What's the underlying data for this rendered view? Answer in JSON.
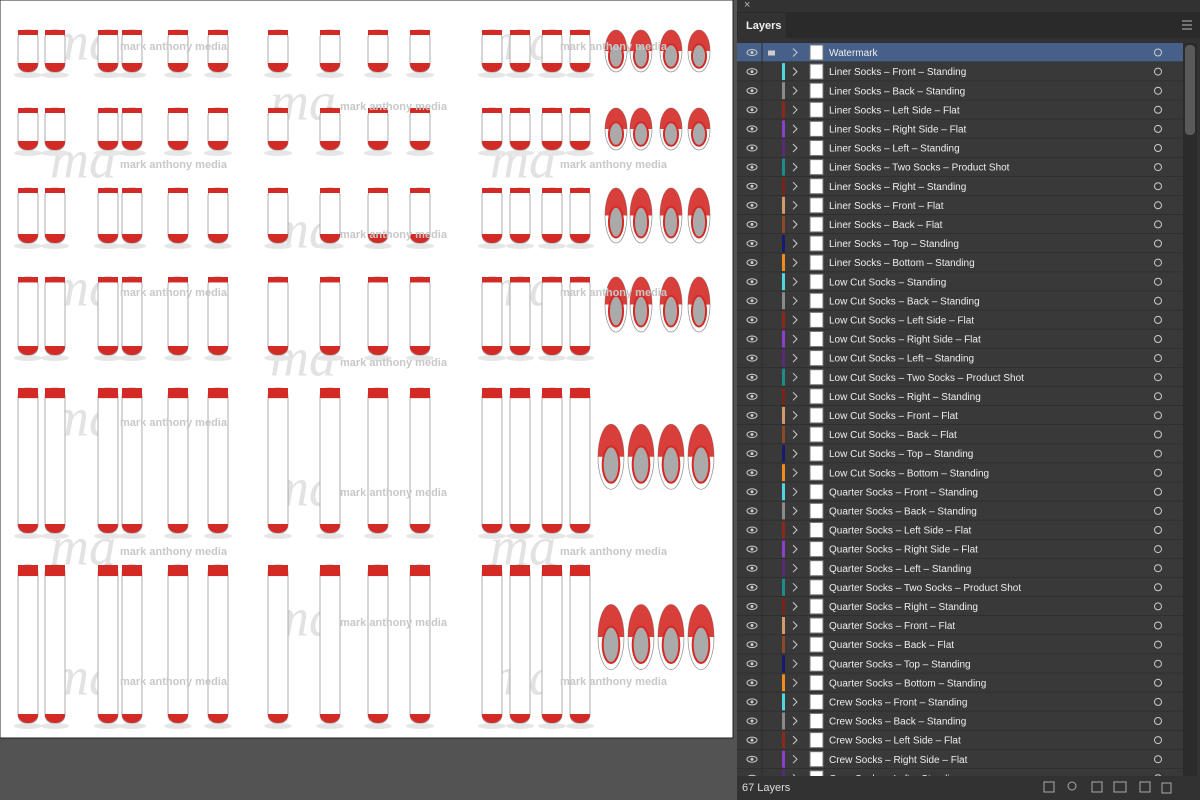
{
  "canvas": {
    "watermark_text": "mark anthony media",
    "watermark_logo": "ma"
  },
  "panel": {
    "tab": "Layers",
    "footer": "67 Layers",
    "layers": [
      {
        "name": "Watermark"
      },
      {
        "name": "Liner Socks – Front – Standing",
        "color": "#4fd6e0"
      },
      {
        "name": "Liner Socks – Back – Standing",
        "color": "#8a8a8a"
      },
      {
        "name": "Liner Socks – Left Side – Flat",
        "color": "#8b2a1a"
      },
      {
        "name": "Liner Socks – Right Side – Flat",
        "color": "#8a40c8"
      },
      {
        "name": "Liner Socks – Left – Standing",
        "color": "#5a2a7a"
      },
      {
        "name": "Liner Socks – Two Socks – Product Shot",
        "color": "#1e8c88"
      },
      {
        "name": "Liner Socks – Right – Standing",
        "color": "#7a2418"
      },
      {
        "name": "Liner Socks – Front – Flat",
        "color": "#d49a6a"
      },
      {
        "name": "Liner Socks – Back – Flat",
        "color": "#8a4a2a"
      },
      {
        "name": "Liner Socks – Top – Standing",
        "color": "#1a1a70"
      },
      {
        "name": "Liner Socks – Bottom – Standing",
        "color": "#f08c1a"
      },
      {
        "name": "Low Cut Socks – Standing",
        "color": "#4fd6e0"
      },
      {
        "name": "Low Cut Socks – Back – Standing",
        "color": "#8a8a8a"
      },
      {
        "name": "Low Cut Socks – Left Side – Flat",
        "color": "#8b2a1a"
      },
      {
        "name": "Low Cut Socks – Right Side – Flat",
        "color": "#8a40c8"
      },
      {
        "name": "Low Cut Socks – Left – Standing",
        "color": "#5a2a7a"
      },
      {
        "name": "Low Cut Socks – Two Socks – Product Shot",
        "color": "#1e8c88"
      },
      {
        "name": "Low Cut Socks – Right – Standing",
        "color": "#7a2418"
      },
      {
        "name": "Low Cut Socks – Front – Flat",
        "color": "#d49a6a"
      },
      {
        "name": "Low Cut Socks – Back – Flat",
        "color": "#8a4a2a"
      },
      {
        "name": "Low Cut Socks – Top – Standing",
        "color": "#1a1a70"
      },
      {
        "name": "Low Cut Socks – Bottom – Standing",
        "color": "#f08c1a"
      },
      {
        "name": "Quarter Socks – Front – Standing",
        "color": "#4fd6e0"
      },
      {
        "name": "Quarter Socks – Back – Standing",
        "color": "#8a8a8a"
      },
      {
        "name": "Quarter Socks – Left Side – Flat",
        "color": "#8b2a1a"
      },
      {
        "name": "Quarter Socks – Right Side – Flat",
        "color": "#8a40c8"
      },
      {
        "name": "Quarter Socks – Left – Standing",
        "color": "#5a2a7a"
      },
      {
        "name": "Quarter Socks – Two Socks – Product Shot",
        "color": "#1e8c88"
      },
      {
        "name": "Quarter Socks – Right – Standing",
        "color": "#7a2418"
      },
      {
        "name": "Quarter Socks – Front – Flat",
        "color": "#d49a6a"
      },
      {
        "name": "Quarter Socks – Back – Flat",
        "color": "#8a4a2a"
      },
      {
        "name": "Quarter Socks – Top – Standing",
        "color": "#1a1a70"
      },
      {
        "name": "Quarter Socks – Bottom – Standing",
        "color": "#f08c1a"
      },
      {
        "name": "Crew Socks – Front – Standing",
        "color": "#4fd6e0"
      },
      {
        "name": "Crew Socks – Back – Standing",
        "color": "#8a8a8a"
      },
      {
        "name": "Crew Socks – Left Side – Flat",
        "color": "#8b2a1a"
      },
      {
        "name": "Crew Socks – Right Side – Flat",
        "color": "#8a40c8"
      },
      {
        "name": "Crew Socks – Left – Standing",
        "color": "#5a2a7a"
      }
    ]
  }
}
